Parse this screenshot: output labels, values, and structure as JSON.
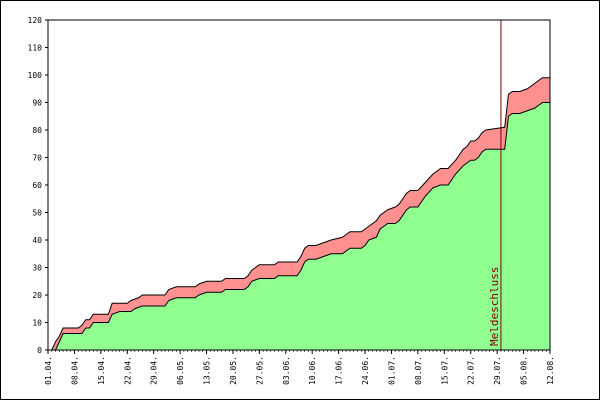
{
  "chart_data": {
    "type": "area",
    "title": "",
    "xlabel": "",
    "ylabel": "",
    "xlim": [
      "2024-04-01",
      "2024-08-12"
    ],
    "ylim": [
      0,
      120
    ],
    "yticks": [
      0,
      10,
      20,
      30,
      40,
      50,
      60,
      70,
      80,
      90,
      100,
      110,
      120
    ],
    "xticks": [
      {
        "date": "2024-04-01",
        "label": "01.04."
      },
      {
        "date": "2024-04-08",
        "label": "08.04."
      },
      {
        "date": "2024-04-15",
        "label": "15.04."
      },
      {
        "date": "2024-04-22",
        "label": "22.04."
      },
      {
        "date": "2024-04-29",
        "label": "29.04."
      },
      {
        "date": "2024-05-06",
        "label": "06.05."
      },
      {
        "date": "2024-05-13",
        "label": "13.05."
      },
      {
        "date": "2024-05-20",
        "label": "20.05."
      },
      {
        "date": "2024-05-27",
        "label": "27.05."
      },
      {
        "date": "2024-06-03",
        "label": "03.06."
      },
      {
        "date": "2024-06-10",
        "label": "10.06."
      },
      {
        "date": "2024-06-17",
        "label": "17.06."
      },
      {
        "date": "2024-06-24",
        "label": "24.06."
      },
      {
        "date": "2024-07-01",
        "label": "01.07."
      },
      {
        "date": "2024-07-08",
        "label": "08.07."
      },
      {
        "date": "2024-07-15",
        "label": "15.07."
      },
      {
        "date": "2024-07-22",
        "label": "22.07."
      },
      {
        "date": "2024-07-29",
        "label": "29.07."
      },
      {
        "date": "2024-08-05",
        "label": "05.08."
      },
      {
        "date": "2024-08-12",
        "label": "12.08."
      }
    ],
    "grid": false,
    "legend": "none",
    "series": [
      {
        "color": "#90ff90",
        "points": [
          [
            "2024-04-01",
            0
          ],
          [
            "2024-04-03",
            0
          ],
          [
            "2024-04-04",
            3
          ],
          [
            "2024-04-05",
            6
          ],
          [
            "2024-04-10",
            6
          ],
          [
            "2024-04-11",
            8
          ],
          [
            "2024-04-12",
            8
          ],
          [
            "2024-04-13",
            10
          ],
          [
            "2024-04-17",
            10
          ],
          [
            "2024-04-18",
            13
          ],
          [
            "2024-04-20",
            14
          ],
          [
            "2024-04-23",
            14
          ],
          [
            "2024-04-24",
            15
          ],
          [
            "2024-04-26",
            16
          ],
          [
            "2024-05-02",
            16
          ],
          [
            "2024-05-03",
            18
          ],
          [
            "2024-05-05",
            19
          ],
          [
            "2024-05-10",
            19
          ],
          [
            "2024-05-11",
            20
          ],
          [
            "2024-05-13",
            21
          ],
          [
            "2024-05-17",
            21
          ],
          [
            "2024-05-18",
            22
          ],
          [
            "2024-05-23",
            22
          ],
          [
            "2024-05-24",
            23
          ],
          [
            "2024-05-25",
            25
          ],
          [
            "2024-05-27",
            26
          ],
          [
            "2024-05-31",
            26
          ],
          [
            "2024-06-01",
            27
          ],
          [
            "2024-06-06",
            27
          ],
          [
            "2024-06-07",
            29
          ],
          [
            "2024-06-08",
            32
          ],
          [
            "2024-06-09",
            33
          ],
          [
            "2024-06-11",
            33
          ],
          [
            "2024-06-13",
            34
          ],
          [
            "2024-06-15",
            35
          ],
          [
            "2024-06-18",
            35
          ],
          [
            "2024-06-20",
            37
          ],
          [
            "2024-06-23",
            37
          ],
          [
            "2024-06-24",
            38
          ],
          [
            "2024-06-25",
            40
          ],
          [
            "2024-06-27",
            41
          ],
          [
            "2024-06-28",
            44
          ],
          [
            "2024-06-30",
            46
          ],
          [
            "2024-07-02",
            46
          ],
          [
            "2024-07-03",
            47
          ],
          [
            "2024-07-05",
            51
          ],
          [
            "2024-07-06",
            52
          ],
          [
            "2024-07-08",
            52
          ],
          [
            "2024-07-10",
            56
          ],
          [
            "2024-07-12",
            59
          ],
          [
            "2024-07-14",
            60
          ],
          [
            "2024-07-16",
            60
          ],
          [
            "2024-07-18",
            64
          ],
          [
            "2024-07-20",
            67
          ],
          [
            "2024-07-21",
            68
          ],
          [
            "2024-07-22",
            69
          ],
          [
            "2024-07-23",
            69
          ],
          [
            "2024-07-24",
            70
          ],
          [
            "2024-07-25",
            72
          ],
          [
            "2024-07-26",
            73
          ],
          [
            "2024-07-31",
            73
          ],
          [
            "2024-08-01",
            85
          ],
          [
            "2024-08-02",
            86
          ],
          [
            "2024-08-04",
            86
          ],
          [
            "2024-08-06",
            87
          ],
          [
            "2024-08-08",
            88
          ],
          [
            "2024-08-10",
            90
          ],
          [
            "2024-08-12",
            90
          ]
        ]
      },
      {
        "color": "#ff9090",
        "points": [
          [
            "2024-04-01",
            0
          ],
          [
            "2024-04-02",
            0
          ],
          [
            "2024-04-03",
            3
          ],
          [
            "2024-04-04",
            5
          ],
          [
            "2024-04-05",
            8
          ],
          [
            "2024-04-09",
            8
          ],
          [
            "2024-04-10",
            9
          ],
          [
            "2024-04-11",
            11
          ],
          [
            "2024-04-12",
            11
          ],
          [
            "2024-04-13",
            13
          ],
          [
            "2024-04-17",
            13
          ],
          [
            "2024-04-18",
            17
          ],
          [
            "2024-04-22",
            17
          ],
          [
            "2024-04-23",
            18
          ],
          [
            "2024-04-25",
            19
          ],
          [
            "2024-04-26",
            20
          ],
          [
            "2024-05-02",
            20
          ],
          [
            "2024-05-03",
            22
          ],
          [
            "2024-05-05",
            23
          ],
          [
            "2024-05-10",
            23
          ],
          [
            "2024-05-11",
            24
          ],
          [
            "2024-05-13",
            25
          ],
          [
            "2024-05-17",
            25
          ],
          [
            "2024-05-18",
            26
          ],
          [
            "2024-05-23",
            26
          ],
          [
            "2024-05-24",
            27
          ],
          [
            "2024-05-25",
            29
          ],
          [
            "2024-05-27",
            31
          ],
          [
            "2024-05-31",
            31
          ],
          [
            "2024-06-01",
            32
          ],
          [
            "2024-06-06",
            32
          ],
          [
            "2024-06-07",
            34
          ],
          [
            "2024-06-08",
            37
          ],
          [
            "2024-06-09",
            38
          ],
          [
            "2024-06-11",
            38
          ],
          [
            "2024-06-13",
            39
          ],
          [
            "2024-06-15",
            40
          ],
          [
            "2024-06-18",
            41
          ],
          [
            "2024-06-20",
            43
          ],
          [
            "2024-06-23",
            43
          ],
          [
            "2024-06-24",
            44
          ],
          [
            "2024-06-25",
            45
          ],
          [
            "2024-06-27",
            47
          ],
          [
            "2024-06-28",
            49
          ],
          [
            "2024-06-30",
            51
          ],
          [
            "2024-07-02",
            52
          ],
          [
            "2024-07-03",
            53
          ],
          [
            "2024-07-05",
            57
          ],
          [
            "2024-07-06",
            58
          ],
          [
            "2024-07-08",
            58
          ],
          [
            "2024-07-10",
            61
          ],
          [
            "2024-07-12",
            64
          ],
          [
            "2024-07-14",
            66
          ],
          [
            "2024-07-16",
            66
          ],
          [
            "2024-07-18",
            69
          ],
          [
            "2024-07-20",
            73
          ],
          [
            "2024-07-21",
            74
          ],
          [
            "2024-07-22",
            76
          ],
          [
            "2024-07-23",
            76
          ],
          [
            "2024-07-24",
            77
          ],
          [
            "2024-07-25",
            79
          ],
          [
            "2024-07-26",
            80
          ],
          [
            "2024-07-31",
            81
          ],
          [
            "2024-08-01",
            93
          ],
          [
            "2024-08-02",
            94
          ],
          [
            "2024-08-04",
            94
          ],
          [
            "2024-08-06",
            95
          ],
          [
            "2024-08-08",
            97
          ],
          [
            "2024-08-10",
            99
          ],
          [
            "2024-08-12",
            99
          ]
        ]
      }
    ],
    "annotations": [
      {
        "date": "2024-07-30",
        "label": "Meldeschluss",
        "color": "#800000"
      }
    ]
  }
}
